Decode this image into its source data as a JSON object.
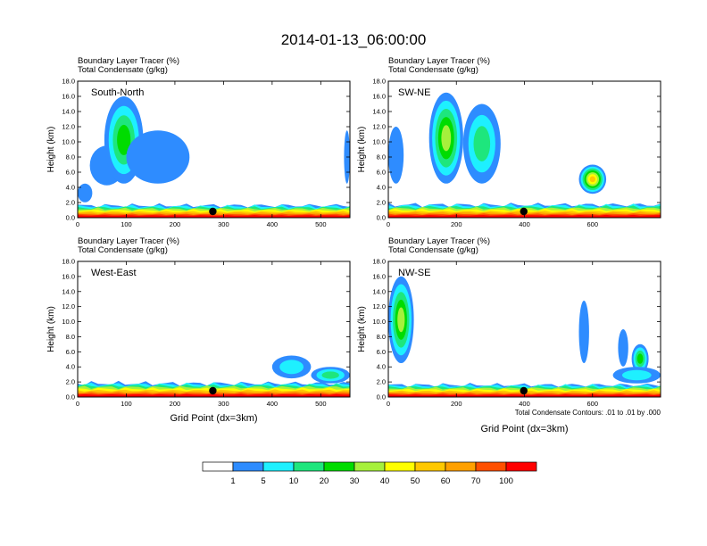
{
  "figure_title": "2014-01-13_06:00:00",
  "colorbar": {
    "labels": [
      "1",
      "5",
      "10",
      "20",
      "30",
      "40",
      "50",
      "60",
      "70",
      "100"
    ],
    "colors": [
      "#ffffff",
      "#2e8cff",
      "#1ef0ff",
      "#1ee67d",
      "#00dc00",
      "#a6f03c",
      "#ffff00",
      "#ffc800",
      "#ffa000",
      "#ff5000",
      "#ff0000"
    ]
  },
  "chart_data": [
    {
      "type": "heatmap",
      "panel": "South-North",
      "titles": [
        "Boundary Layer Tracer   (%)",
        "Total Condensate   (g/kg)"
      ],
      "ylabel": "Height (km)",
      "xlabel": "",
      "xlim": [
        0,
        560
      ],
      "ylim": [
        0,
        18
      ],
      "x_ticks": [
        0,
        100,
        200,
        300,
        400,
        500
      ],
      "y_ticks": [
        "0.0",
        "2.0",
        "4.0",
        "6.0",
        "8.0",
        "10.0",
        "12.0",
        "14.0",
        "16.0",
        "18.0"
      ],
      "marker_x": 278,
      "note": "",
      "features": [
        {
          "x0": 0,
          "x1": 560,
          "top": 1.6,
          "level": "bl-layer"
        },
        {
          "x0": 25,
          "x1": 95,
          "top": 9.5,
          "level": 5
        },
        {
          "x0": 55,
          "x1": 135,
          "top": 16.0,
          "level": 30
        },
        {
          "x0": 100,
          "x1": 230,
          "top": 11.5,
          "level": 5
        },
        {
          "x0": 0,
          "x1": 30,
          "top": 4.5,
          "level": 5
        },
        {
          "x0": 548,
          "x1": 560,
          "top": 11.5,
          "level": 5
        }
      ]
    },
    {
      "type": "heatmap",
      "panel": "SW-NE",
      "titles": [
        "Boundary Layer Tracer   (%)",
        "Total Condensate   (g/kg)"
      ],
      "ylabel": "Height (km)",
      "xlabel": "",
      "xlim": [
        0,
        800
      ],
      "ylim": [
        0,
        18
      ],
      "x_ticks": [
        0,
        200,
        400,
        600
      ],
      "y_ticks": [
        "0.0",
        "2.0",
        "4.0",
        "6.0",
        "8.0",
        "10.0",
        "12.0",
        "14.0",
        "16.0",
        "18.0"
      ],
      "marker_x": 398,
      "note": "",
      "features": [
        {
          "x0": 0,
          "x1": 800,
          "top": 1.7,
          "level": "bl-layer"
        },
        {
          "x0": 0,
          "x1": 45,
          "top": 12.0,
          "level": 5
        },
        {
          "x0": 120,
          "x1": 220,
          "top": 16.5,
          "level": 40
        },
        {
          "x0": 220,
          "x1": 330,
          "top": 15.0,
          "level": 20
        },
        {
          "x0": 560,
          "x1": 640,
          "top": 7.0,
          "level": 60
        }
      ]
    },
    {
      "type": "heatmap",
      "panel": "West-East",
      "titles": [
        "Boundary Layer Tracer   (%)",
        "Total Condensate   (g/kg)"
      ],
      "ylabel": "Height (km)",
      "xlabel": "Grid Point (dx=3km)",
      "xlim": [
        0,
        560
      ],
      "ylim": [
        0,
        18
      ],
      "x_ticks": [
        0,
        100,
        200,
        300,
        400,
        500
      ],
      "y_ticks": [
        "0.0",
        "2.0",
        "4.0",
        "6.0",
        "8.0",
        "10.0",
        "12.0",
        "14.0",
        "16.0",
        "18.0"
      ],
      "marker_x": 278,
      "note": "",
      "features": [
        {
          "x0": 0,
          "x1": 560,
          "top": 1.8,
          "level": "bl-layer"
        },
        {
          "x0": 400,
          "x1": 480,
          "top": 5.5,
          "level": 10
        },
        {
          "x0": 480,
          "x1": 560,
          "top": 4.0,
          "level": 20
        }
      ]
    },
    {
      "type": "heatmap",
      "panel": "NW-SE",
      "titles": [
        "Boundary Layer Tracer   (%)",
        "Total Condensate   (g/kg)"
      ],
      "ylabel": "Height (km)",
      "xlabel": "Grid Point (dx=3km)",
      "xlim": [
        0,
        800
      ],
      "ylim": [
        0,
        18
      ],
      "x_ticks": [
        0,
        200,
        400,
        600
      ],
      "y_ticks": [
        "0.0",
        "2.0",
        "4.0",
        "6.0",
        "8.0",
        "10.0",
        "12.0",
        "14.0",
        "16.0",
        "18.0"
      ],
      "marker_x": 398,
      "note": "Total Condensate Contours: .01 to .01 by .000",
      "features": [
        {
          "x0": 0,
          "x1": 800,
          "top": 1.6,
          "level": "bl-layer"
        },
        {
          "x0": 0,
          "x1": 75,
          "top": 16.0,
          "level": 40
        },
        {
          "x0": 560,
          "x1": 590,
          "top": 12.8,
          "level": 5
        },
        {
          "x0": 675,
          "x1": 705,
          "top": 9.0,
          "level": 5
        },
        {
          "x0": 715,
          "x1": 765,
          "top": 7.0,
          "level": 30
        },
        {
          "x0": 660,
          "x1": 800,
          "top": 4.0,
          "level": 10
        }
      ]
    }
  ]
}
